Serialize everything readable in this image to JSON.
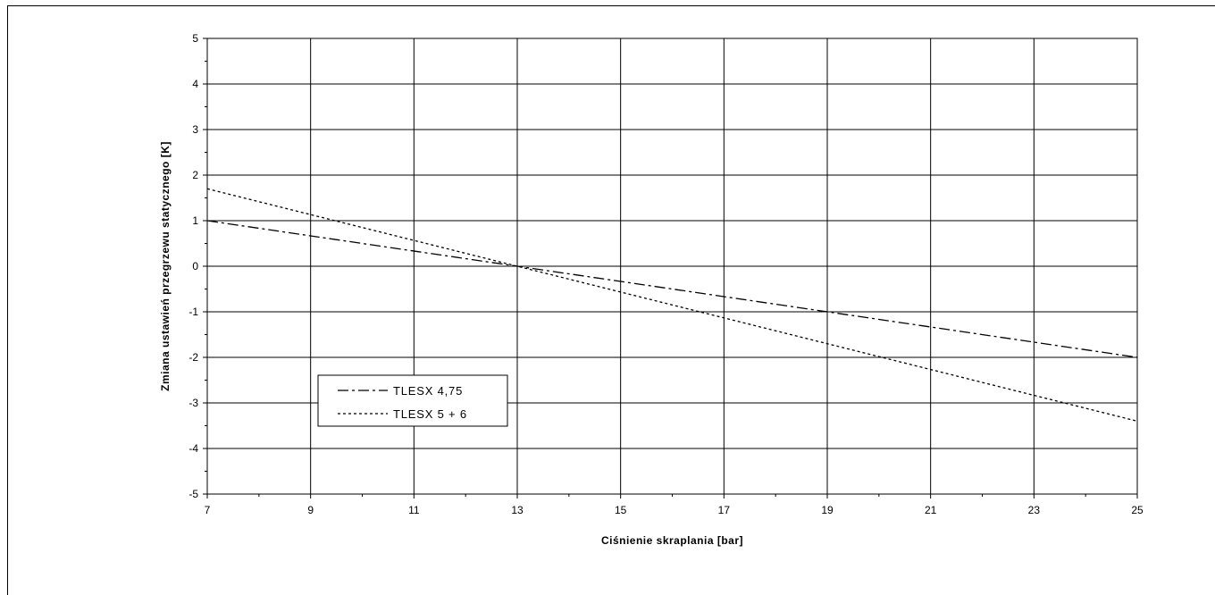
{
  "chart_data": {
    "type": "line",
    "xlabel": "Ciśnienie skraplania [bar]",
    "ylabel": "Zmiana ustawień przegrzewu statycznego [K]",
    "xlim": [
      7,
      25
    ],
    "ylim": [
      -5,
      5
    ],
    "x_ticks": [
      "7",
      "9",
      "11",
      "13",
      "15",
      "17",
      "19",
      "21",
      "23",
      "25"
    ],
    "y_ticks": [
      "5",
      "4",
      "3",
      "2",
      "1",
      "0",
      "-1",
      "-2",
      "-3",
      "-4",
      "-5"
    ],
    "grid": true,
    "legend_position": "lower-left",
    "series": [
      {
        "name": "TLESX 4,75",
        "style": "dash-dot",
        "color": "#000000",
        "x": [
          7,
          13,
          25
        ],
        "y": [
          1.0,
          0.0,
          -2.0
        ]
      },
      {
        "name": "TLESX 5 + 6",
        "style": "dotted",
        "color": "#000000",
        "x": [
          7,
          13,
          25
        ],
        "y": [
          1.7,
          0.0,
          -3.4
        ]
      }
    ]
  }
}
